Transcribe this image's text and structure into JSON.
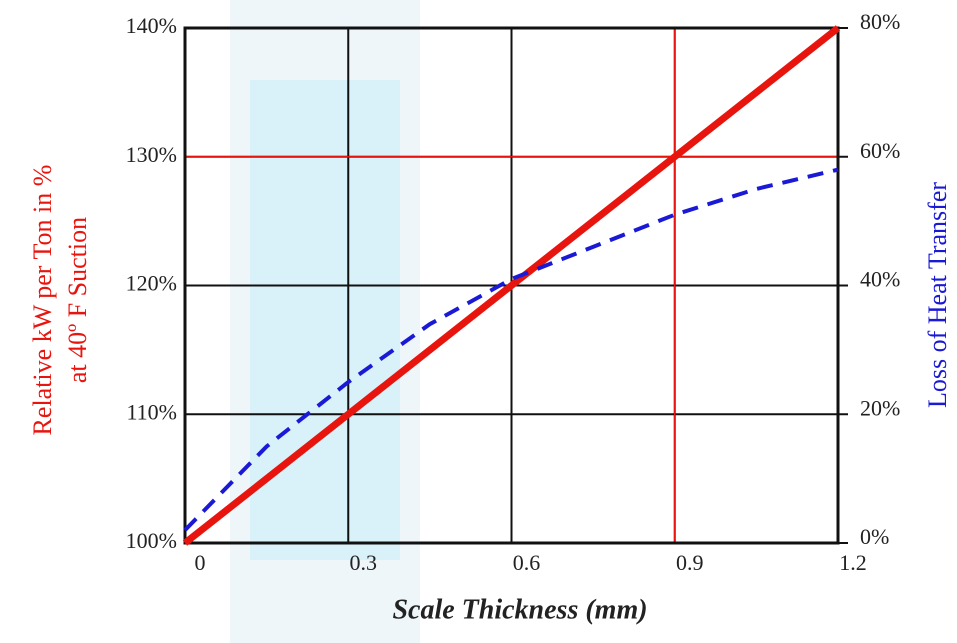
{
  "chart_data": {
    "type": "line",
    "x_label": "Scale Thickness (mm)",
    "y_label": [
      "Relative kW per Ton in %",
      "at 40º F Suction"
    ],
    "y2_label": "Loss of Heat Transfer",
    "x": [
      0,
      0.15,
      0.3,
      0.45,
      0.6,
      0.75,
      0.9,
      1.05,
      1.2
    ],
    "series": [
      {
        "color": "#e8150f",
        "values": [
          100,
          105,
          110,
          115,
          120,
          125,
          130,
          135,
          140
        ]
      },
      {
        "color": "#1a1ad6",
        "axis": "y2",
        "dashed": true,
        "values": [
          2,
          15,
          25,
          34,
          41,
          46,
          51,
          55,
          58
        ]
      }
    ],
    "xlim": [
      0,
      1.2
    ],
    "xticks": [
      0,
      0.3,
      0.6,
      0.9,
      1.2
    ],
    "ylim": [
      100,
      140
    ],
    "yticks": [
      {
        "value": 100,
        "label": "100%"
      },
      {
        "value": 110,
        "label": "110%"
      },
      {
        "value": 120,
        "label": "120%"
      },
      {
        "value": 130,
        "label": "130%"
      },
      {
        "value": 140,
        "label": "140%"
      }
    ],
    "y2lim": [
      0,
      80
    ],
    "y2ticks": [
      {
        "value": 0,
        "label": "0%"
      },
      {
        "value": 20,
        "label": "20%"
      },
      {
        "value": 40,
        "label": "40%"
      },
      {
        "value": 60,
        "label": "60%"
      },
      {
        "value": 80,
        "label": "80%"
      }
    ],
    "grid": true,
    "highlight": {
      "x": 0.9,
      "y": 130,
      "color": "#e8150f"
    }
  }
}
